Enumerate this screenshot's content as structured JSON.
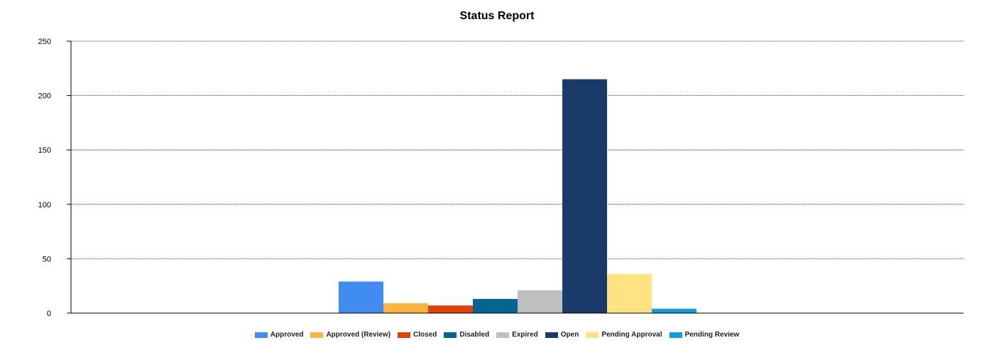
{
  "chart_data": {
    "type": "bar",
    "title": "Status Report",
    "xlabel": "",
    "ylabel": "",
    "ylim": [
      0,
      250
    ],
    "yticks": [
      "0",
      "50",
      "100",
      "150",
      "200",
      "250"
    ],
    "grid": true,
    "legend_position": "bottom",
    "series": [
      {
        "name": "Approved",
        "value": 29,
        "color": "#418CF0"
      },
      {
        "name": "Approved (Review)",
        "value": 9,
        "color": "#FCB441"
      },
      {
        "name": "Closed",
        "value": 7,
        "color": "#E0400A"
      },
      {
        "name": "Disabled",
        "value": 13,
        "color": "#056492"
      },
      {
        "name": "Expired",
        "value": 21,
        "color": "#BFBFBF"
      },
      {
        "name": "Open",
        "value": 215,
        "color": "#1A3B69"
      },
      {
        "name": "Pending Approval",
        "value": 36,
        "color": "#FFE382"
      },
      {
        "name": "Pending Review",
        "value": 4,
        "color": "#129CDD"
      }
    ]
  }
}
